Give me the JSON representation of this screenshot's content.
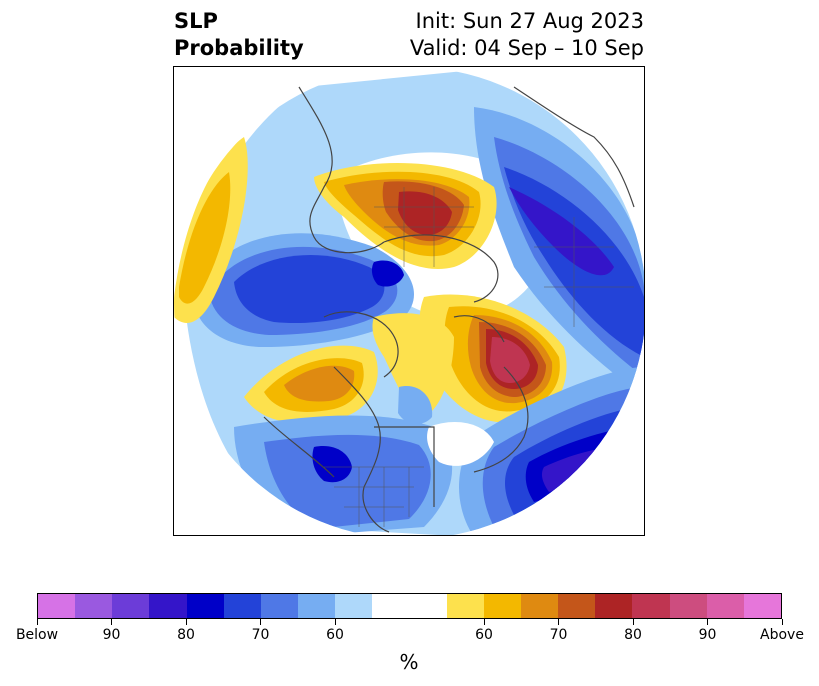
{
  "title": {
    "left_line1": "SLP",
    "left_line2": "Probability",
    "right_line1": "Init: Sun 27 Aug 2023",
    "right_line2": "Valid: 04 Sep – 10 Sep"
  },
  "map": {
    "projection": "north-polar-stereographic",
    "field": "SLP probability",
    "features": [
      {
        "name": "above-normal-max-eurasia",
        "category": "Above",
        "probability_percent": 80
      },
      {
        "name": "above-normal-max-north-atlantic",
        "category": "Above",
        "probability_percent": 85
      },
      {
        "name": "above-normal-north-america-west",
        "category": "Above",
        "probability_percent": 70
      },
      {
        "name": "below-normal-north-pacific",
        "category": "Below",
        "probability_percent": 80
      },
      {
        "name": "below-normal-siberia-east",
        "category": "Below",
        "probability_percent": 85
      },
      {
        "name": "below-normal-subtropical-atlantic",
        "category": "Below",
        "probability_percent": 85
      },
      {
        "name": "below-normal-arctic-canada",
        "category": "Below",
        "probability_percent": 80
      }
    ]
  },
  "colorbar": {
    "unit_label": "%",
    "tick_labels": [
      "Below",
      "90",
      "80",
      "70",
      "60",
      "60",
      "70",
      "80",
      "90",
      "Above"
    ],
    "colors": [
      "#d672e6",
      "#9a59e0",
      "#6c3cd8",
      "#3415c9",
      "#0000c8",
      "#2343d8",
      "#4f78e6",
      "#76adf2",
      "#aed8fa",
      "#ffffff",
      "#fde14d",
      "#f3b800",
      "#df8a11",
      "#c4561a",
      "#ad2425",
      "#bf3551",
      "#cd4d7f",
      "#db5ea9",
      "#e676da"
    ]
  },
  "colors": {
    "frame": "#000000",
    "coastline": "#444444"
  }
}
